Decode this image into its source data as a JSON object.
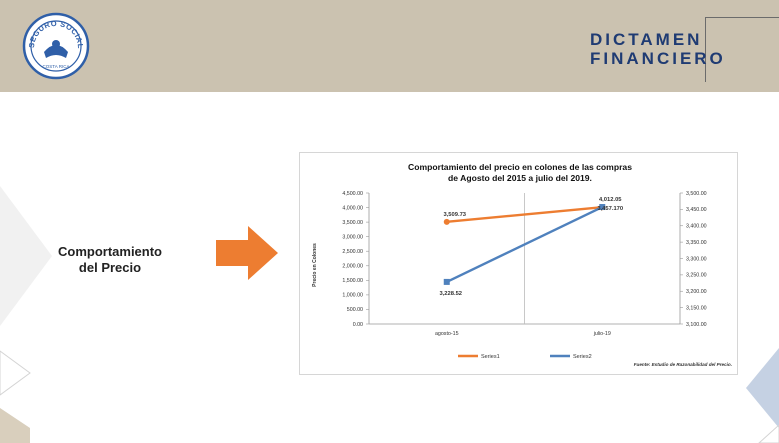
{
  "header": {
    "brand_line1": "DICTAMEN",
    "brand_line2": "FINANCIERO",
    "logo_text_top": "SEGURO SOCIAL",
    "logo_text_bottom": "COSTA RICA",
    "background_color": "#cbc2b0",
    "brand_color": "#1f3b73"
  },
  "section": {
    "label_line1": "Comportamiento",
    "label_line2": "del Precio",
    "arrow_color": "#ed7d31",
    "arrow_icon": "right-arrow-icon"
  },
  "chart_data": {
    "type": "line",
    "title_line1": "Comportamiento del precio en colones de las compras",
    "title_line2": "de Agosto del 2015 a julio del 2019.",
    "categories": [
      "agosto-15",
      "julio-19"
    ],
    "ylabel": "Precio en Colones",
    "ylim_left": [
      0,
      4500
    ],
    "ylim_right": [
      3100,
      3500
    ],
    "yticks_left": [
      "0.00",
      "500.00",
      "1,000.00",
      "1,500.00",
      "2,000.00",
      "2,500.00",
      "3,000.00",
      "3,500.00",
      "4,000.00",
      "4,500.00"
    ],
    "yticks_right": [
      "3,100.00",
      "3,150.00",
      "3,200.00",
      "3,250.00",
      "3,300.00",
      "3,350.00",
      "3,400.00",
      "3,450.00",
      "3,500.00"
    ],
    "series": [
      {
        "name": "Series1",
        "axis": "left",
        "color": "#ed7d31",
        "marker": "circle",
        "values": [
          3509.73,
          4012.05
        ],
        "labels": [
          "3,509.73",
          "4,012.05"
        ]
      },
      {
        "name": "Series2",
        "axis": "right",
        "color": "#4f81bd",
        "marker": "square",
        "values": [
          3228.52,
          3457.17
        ],
        "labels": [
          "3,228.52",
          "3,457.170"
        ]
      }
    ],
    "source_note": "Fuente: Estudio de Razonabilidad del Precio.",
    "grid": false,
    "legend_position": "bottom"
  }
}
